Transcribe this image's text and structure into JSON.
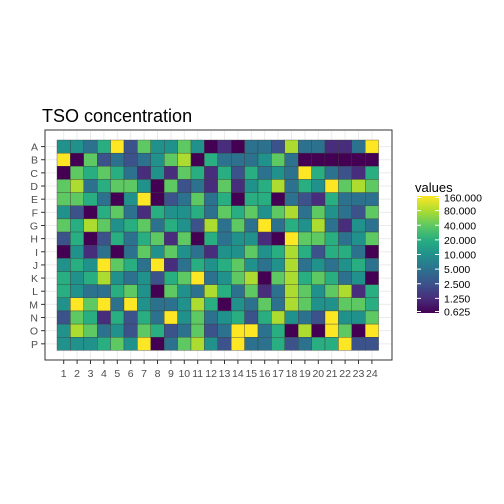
{
  "chart_data": {
    "type": "heatmap",
    "title": "TSO concentration",
    "xlabel": "",
    "ylabel": "",
    "rows": [
      "A",
      "B",
      "C",
      "D",
      "E",
      "F",
      "G",
      "H",
      "I",
      "J",
      "K",
      "L",
      "M",
      "N",
      "O",
      "P"
    ],
    "cols": [
      "1",
      "2",
      "3",
      "4",
      "5",
      "6",
      "7",
      "8",
      "9",
      "10",
      "11",
      "12",
      "13",
      "14",
      "15",
      "16",
      "17",
      "18",
      "19",
      "20",
      "21",
      "22",
      "23",
      "24"
    ],
    "scale": "log2",
    "grid": true,
    "legend": {
      "title": "values",
      "placement": "right",
      "labels": [
        "160.000",
        "80.000",
        "40.000",
        "20.000",
        "10.000",
        "5.000",
        "2.500",
        "1.250",
        "0.625"
      ],
      "values": [
        160,
        80,
        40,
        20,
        10,
        5,
        2.5,
        1.25,
        0.625
      ]
    },
    "colors": [
      "#440154",
      "#472d7b",
      "#3b528b",
      "#2c728e",
      "#21918c",
      "#28ae80",
      "#5ec962",
      "#addc30",
      "#fde725"
    ],
    "values": [
      [
        10,
        10,
        5,
        20,
        160,
        2.5,
        40,
        10,
        10,
        40,
        10,
        0.625,
        1.25,
        0.625,
        5,
        5,
        2.5,
        80,
        5,
        5,
        1.25,
        1.25,
        5,
        160
      ],
      [
        160,
        0.625,
        40,
        2.5,
        5,
        2.5,
        5,
        10,
        40,
        80,
        0.625,
        20,
        5,
        5,
        5,
        10,
        40,
        5,
        0.625,
        0.625,
        0.625,
        0.625,
        0.625,
        0.625
      ],
      [
        0.625,
        40,
        20,
        40,
        20,
        5,
        1.25,
        10,
        1.25,
        40,
        20,
        1.25,
        20,
        2.5,
        20,
        5,
        10,
        5,
        160,
        20,
        5,
        2.5,
        1.25,
        20
      ],
      [
        40,
        80,
        5,
        20,
        40,
        40,
        10,
        0.625,
        40,
        2.5,
        5,
        1.25,
        40,
        1.25,
        10,
        20,
        80,
        5,
        20,
        10,
        160,
        40,
        80,
        40
      ],
      [
        40,
        40,
        20,
        5,
        0.625,
        10,
        160,
        0.625,
        2.5,
        5,
        40,
        5,
        20,
        0.625,
        20,
        20,
        0.625,
        5,
        2.5,
        1.25,
        20,
        5,
        5,
        5
      ],
      [
        10,
        2.5,
        0.625,
        20,
        40,
        5,
        1.25,
        20,
        10,
        10,
        20,
        5,
        40,
        20,
        40,
        10,
        40,
        80,
        5,
        40,
        10,
        5,
        2.5,
        40
      ],
      [
        40,
        20,
        80,
        40,
        10,
        20,
        40,
        5,
        20,
        10,
        2.5,
        80,
        5,
        40,
        5,
        160,
        5,
        20,
        10,
        80,
        5,
        1.25,
        10,
        5
      ],
      [
        2.5,
        20,
        0.625,
        2.5,
        20,
        5,
        20,
        40,
        1.25,
        40,
        0.625,
        20,
        5,
        10,
        10,
        1.25,
        0.625,
        160,
        40,
        40,
        20,
        5,
        10,
        40
      ],
      [
        0.625,
        10,
        1.25,
        5,
        0.625,
        5,
        40,
        10,
        40,
        10,
        5,
        1.25,
        10,
        10,
        40,
        10,
        20,
        80,
        20,
        2.5,
        20,
        20,
        5,
        0.625
      ],
      [
        10,
        20,
        10,
        160,
        40,
        20,
        5,
        160,
        1.25,
        5,
        20,
        10,
        20,
        40,
        10,
        5,
        10,
        80,
        5,
        10,
        5,
        10,
        20,
        5
      ],
      [
        20,
        10,
        20,
        80,
        10,
        5,
        10,
        2.5,
        20,
        40,
        160,
        5,
        10,
        40,
        80,
        0.625,
        40,
        80,
        20,
        40,
        20,
        5,
        10,
        0.625
      ],
      [
        20,
        10,
        5,
        5,
        20,
        40,
        10,
        0.625,
        40,
        10,
        5,
        80,
        20,
        5,
        40,
        1.25,
        5,
        80,
        40,
        10,
        40,
        80,
        1.25,
        20
      ],
      [
        10,
        160,
        40,
        160,
        5,
        160,
        10,
        5,
        5,
        10,
        80,
        20,
        0.625,
        10,
        5,
        40,
        5,
        80,
        40,
        10,
        10,
        40,
        40,
        20
      ],
      [
        2.5,
        40,
        20,
        1.25,
        20,
        2.5,
        20,
        5,
        160,
        10,
        40,
        5,
        10,
        20,
        2.5,
        20,
        80,
        10,
        5,
        2.5,
        160,
        10,
        10,
        40
      ],
      [
        10,
        80,
        40,
        5,
        10,
        2.5,
        40,
        20,
        2.5,
        5,
        40,
        2.5,
        5,
        160,
        160,
        5,
        20,
        0.625,
        80,
        0.625,
        160,
        40,
        0.625,
        160
      ],
      [
        10,
        10,
        10,
        20,
        40,
        10,
        160,
        0.625,
        5,
        40,
        80,
        10,
        2.5,
        160,
        5,
        5,
        20,
        2.5,
        5,
        20,
        20,
        160,
        2.5,
        2.5
      ]
    ]
  }
}
